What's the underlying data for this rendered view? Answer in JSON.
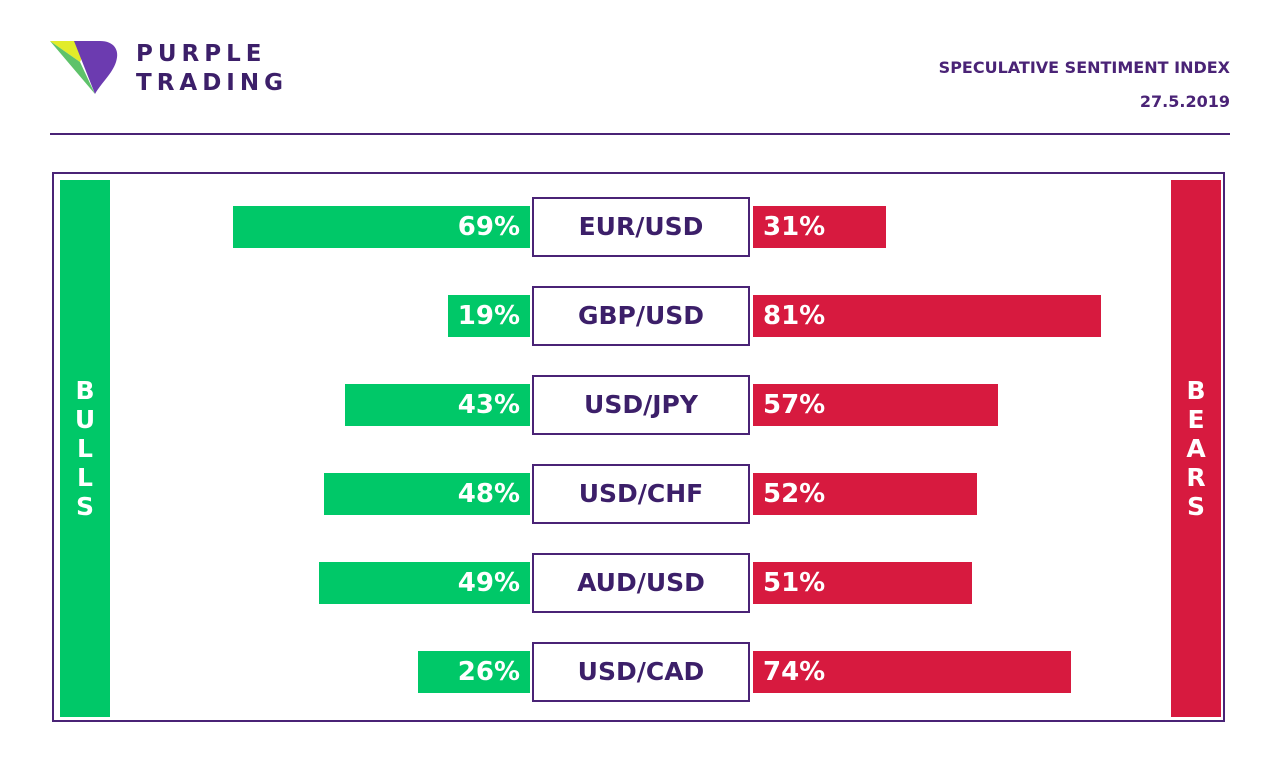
{
  "brand": {
    "line1": "PURPLE",
    "line2": "TRADING",
    "logo_colors": {
      "yellow": "#e2ec2a",
      "green": "#5ec26a",
      "purple": "#6c3bb0"
    }
  },
  "header": {
    "title": "SPECULATIVE SENTIMENT INDEX",
    "date": "27.5.2019"
  },
  "colors": {
    "bulls": "#00c868",
    "bears": "#d71a3f",
    "accent": "#4a2376"
  },
  "chart_data": {
    "type": "bar",
    "orientation": "horizontal-diverging",
    "categories": [
      "EUR/USD",
      "GBP/USD",
      "USD/JPY",
      "USD/CHF",
      "AUD/USD",
      "USD/CAD"
    ],
    "series": [
      {
        "name": "BULLS",
        "values": [
          69,
          19,
          43,
          48,
          49,
          26
        ],
        "labels": [
          "69%",
          "19%",
          "43%",
          "48%",
          "49%",
          "26%"
        ],
        "color": "#00c868"
      },
      {
        "name": "BEARS",
        "values": [
          31,
          81,
          57,
          52,
          51,
          74
        ],
        "labels": [
          "31%",
          "81%",
          "57%",
          "52%",
          "51%",
          "74%"
        ],
        "color": "#d71a3f"
      }
    ],
    "unit": "%",
    "xlim": [
      0,
      100
    ]
  }
}
